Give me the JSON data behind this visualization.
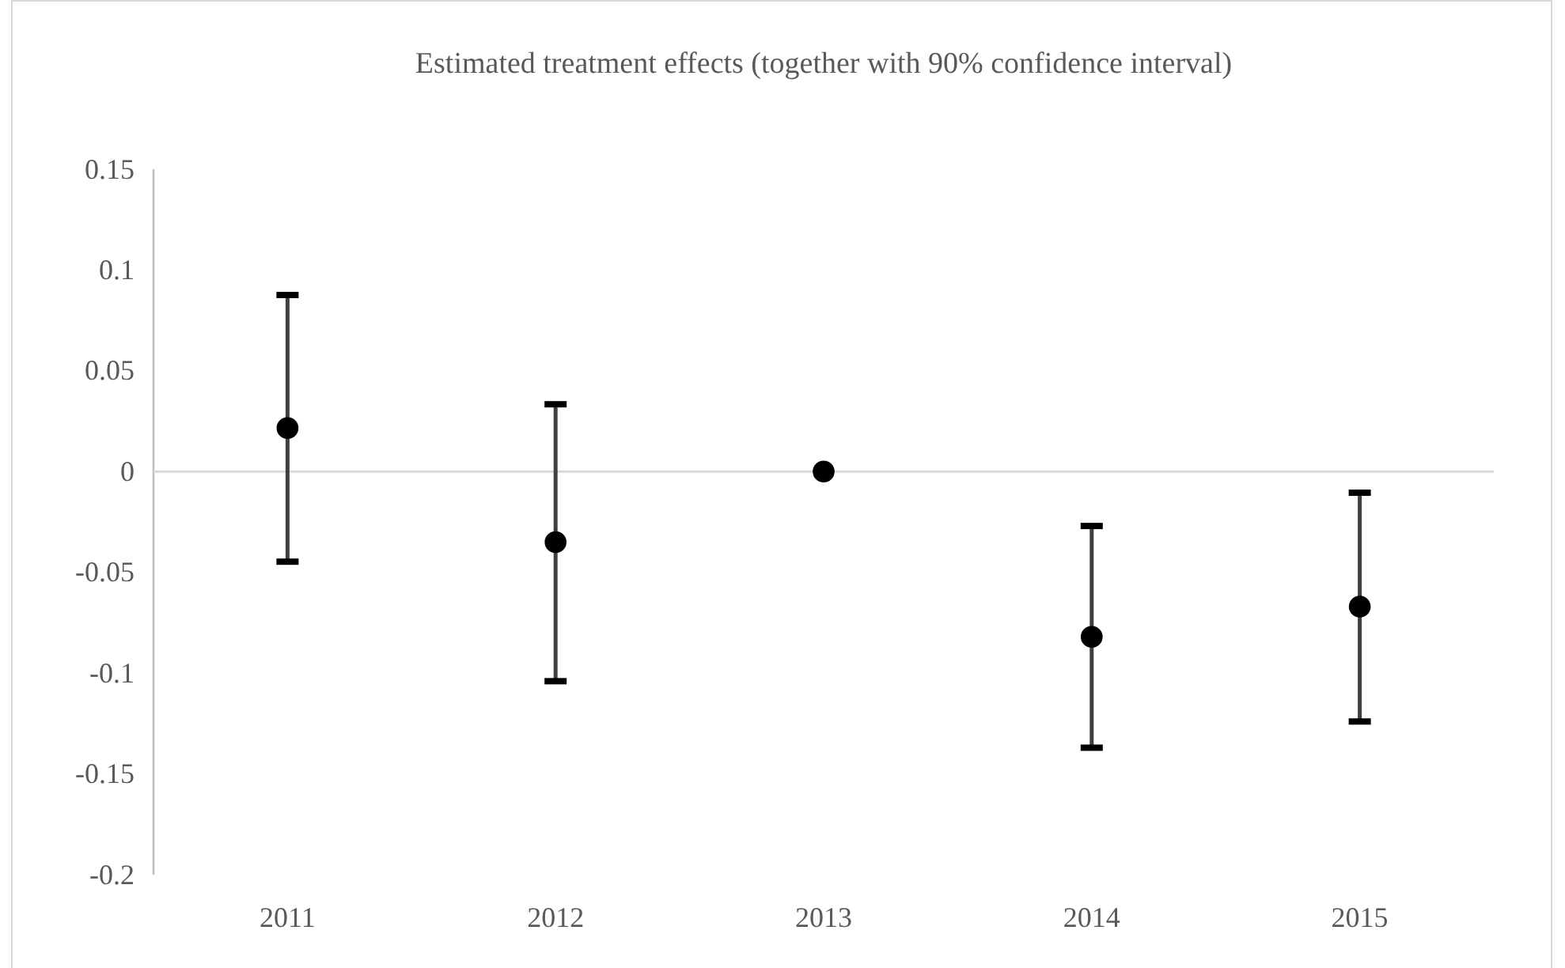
{
  "chart_data": {
    "type": "scatter",
    "title": "Estimated treatment effects (together with 90% confidence interval)",
    "categories": [
      "2011",
      "2012",
      "2013",
      "2014",
      "2015"
    ],
    "series": [
      {
        "color": "#000000",
        "values": [
          0.0216,
          -0.035,
          0,
          -0.082,
          -0.067
        ],
        "errors": [
          [
            -0.0447,
            0.0876
          ],
          [
            -0.104,
            0.0334
          ],
          null,
          [
            -0.137,
            -0.027
          ],
          [
            -0.124,
            -0.0105
          ]
        ]
      }
    ],
    "ylim": [
      -0.2,
      0.15
    ],
    "yticks": [
      -0.2,
      -0.15,
      -0.1,
      -0.05,
      0,
      0.05,
      0.1,
      0.15
    ],
    "ref_lines": [
      {
        "axis": "y",
        "value": 0,
        "color": "#d9d9d9"
      }
    ],
    "marker": "circle"
  }
}
